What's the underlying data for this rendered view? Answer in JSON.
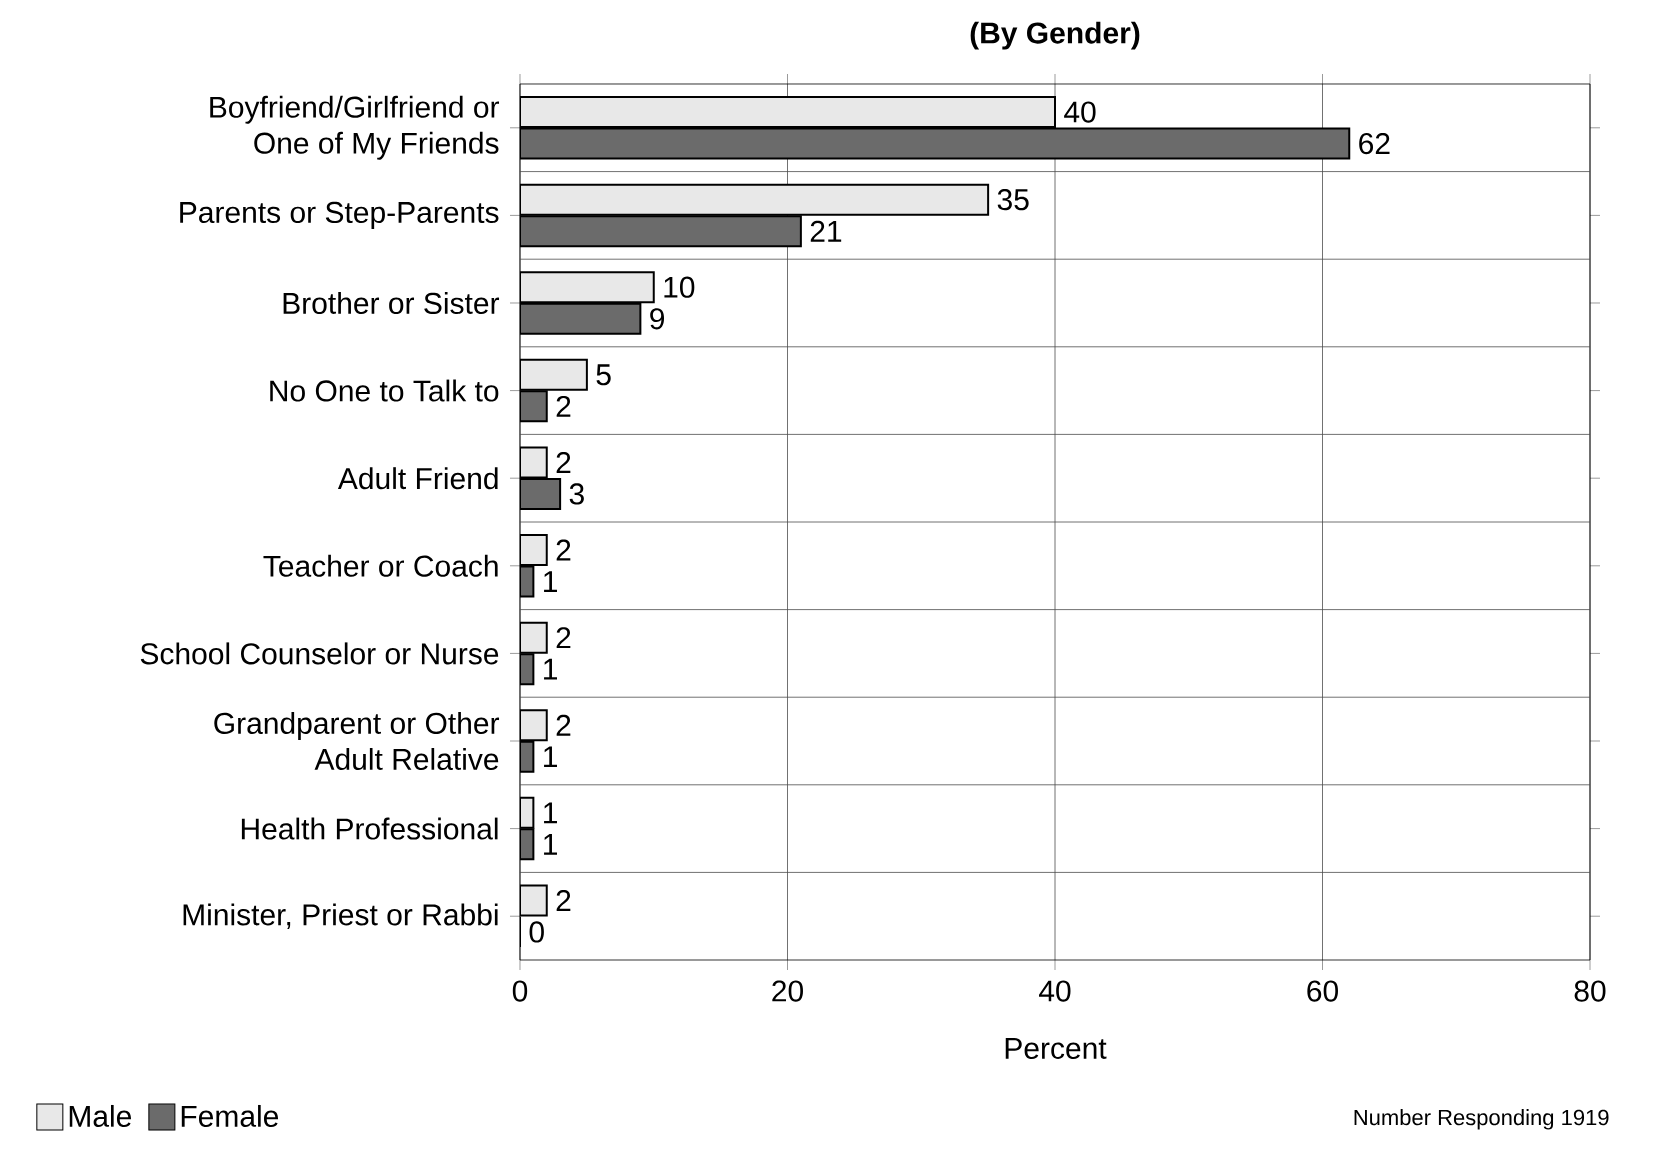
{
  "chart_data": {
    "type": "bar",
    "orientation": "horizontal",
    "title": "(By Gender)",
    "xlabel": "Percent",
    "categories": [
      "Boyfriend/Girlfriend or One of My Friends",
      "Parents or Step-Parents",
      "Brother or Sister",
      "No One to Talk to",
      "Adult Friend",
      "Teacher or Coach",
      "School Counselor or Nurse",
      "Grandparent or Other Adult Relative",
      "Health Professional",
      "Minister, Priest or Rabbi"
    ],
    "series": [
      {
        "name": "Male",
        "color": "#e8e8e8",
        "values": [
          40,
          35,
          10,
          5,
          2,
          2,
          2,
          2,
          1,
          2
        ]
      },
      {
        "name": "Female",
        "color": "#6b6b6b",
        "values": [
          62,
          21,
          9,
          2,
          3,
          1,
          1,
          1,
          1,
          0
        ]
      }
    ],
    "xlim": [
      0,
      80
    ],
    "xticks": [
      0,
      20,
      40,
      60,
      80
    ],
    "grid": true,
    "legend": "bottom left",
    "data_labels": true,
    "annotations": [
      "Number Responding  1919"
    ]
  }
}
